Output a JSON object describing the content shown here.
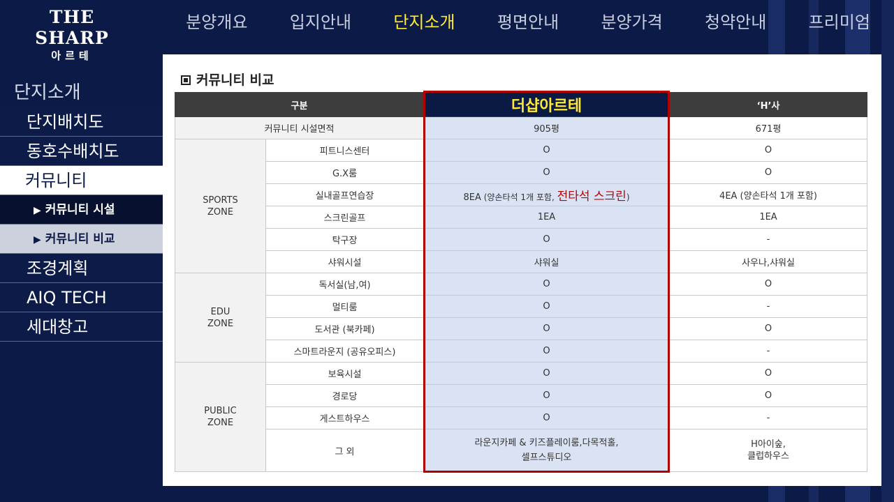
{
  "brand": {
    "name": "THE SHARP",
    "sub": "아르테"
  },
  "nav": {
    "items": [
      "분양개요",
      "입지안내",
      "단지소개",
      "평면안내",
      "분양가격",
      "청약안내",
      "프리미엄"
    ],
    "active_index": 2
  },
  "sidebar": {
    "section_title": "단지소개",
    "items": [
      {
        "label": "단지배치도"
      },
      {
        "label": "동호수배치도"
      },
      {
        "label": "커뮤니티"
      },
      {
        "label": "커뮤니티 시설"
      },
      {
        "label": "커뮤니티 비교"
      },
      {
        "label": "조경계획"
      },
      {
        "label": "AIQ TECH"
      },
      {
        "label": "세대창고"
      }
    ]
  },
  "page": {
    "title": "커뮤니티 비교"
  },
  "table": {
    "headers": {
      "category": "구분",
      "ours": "더샵아르테",
      "other": "‘H’사"
    },
    "area": {
      "label": "커뮤니티 시설면적",
      "ours": "905평",
      "other": "671평"
    },
    "zones": [
      {
        "name_line1": "SPORTS",
        "name_line2": "ZONE"
      },
      {
        "name_line1": "EDU",
        "name_line2": "ZONE"
      },
      {
        "name_line1": "PUBLIC",
        "name_line2": "ZONE"
      }
    ],
    "rows": [
      {
        "label": "피트니스센터",
        "ours": "O",
        "other": "O"
      },
      {
        "label": "G.X룸",
        "ours": "O",
        "other": "O"
      },
      {
        "label": "실내골프연습장",
        "ours": "8EA",
        "ours_note": " (양손타석 1개 포함, ",
        "ours_red": "전타석 스크린",
        "ours_close": ")",
        "other": "4EA (양손타석 1개 포함)"
      },
      {
        "label": "스크린골프",
        "ours": "1EA",
        "other": "1EA"
      },
      {
        "label": "탁구장",
        "ours": "O",
        "other": "-"
      },
      {
        "label": "샤워시설",
        "ours": "샤워실",
        "other": "사우나,샤워실"
      },
      {
        "label": "독서실(남,여)",
        "ours": "O",
        "other": "O"
      },
      {
        "label": "멀티룸",
        "ours": "O",
        "other": "-"
      },
      {
        "label": "도서관 (북카페)",
        "ours": "O",
        "other": "O"
      },
      {
        "label": "스마트라운지 (공유오피스)",
        "ours": "O",
        "other": "-"
      },
      {
        "label": "보육시설",
        "ours": "O",
        "other": "O"
      },
      {
        "label": "경로당",
        "ours": "O",
        "other": "O"
      },
      {
        "label": "게스트하우스",
        "ours": "O",
        "other": "-"
      },
      {
        "label": "그 외",
        "ours_line1": "라운지카페 & 키즈플레이룸,다목적홀,",
        "ours_line2": "셀프스튜디오",
        "other_line1": "H아이숲,",
        "other_line2": "클럽하우스"
      }
    ]
  },
  "colors": {
    "accent": "#ffe837",
    "navy": "#0c1a47",
    "highlight_col": "#dae3f3",
    "border_red": "#b00000"
  }
}
